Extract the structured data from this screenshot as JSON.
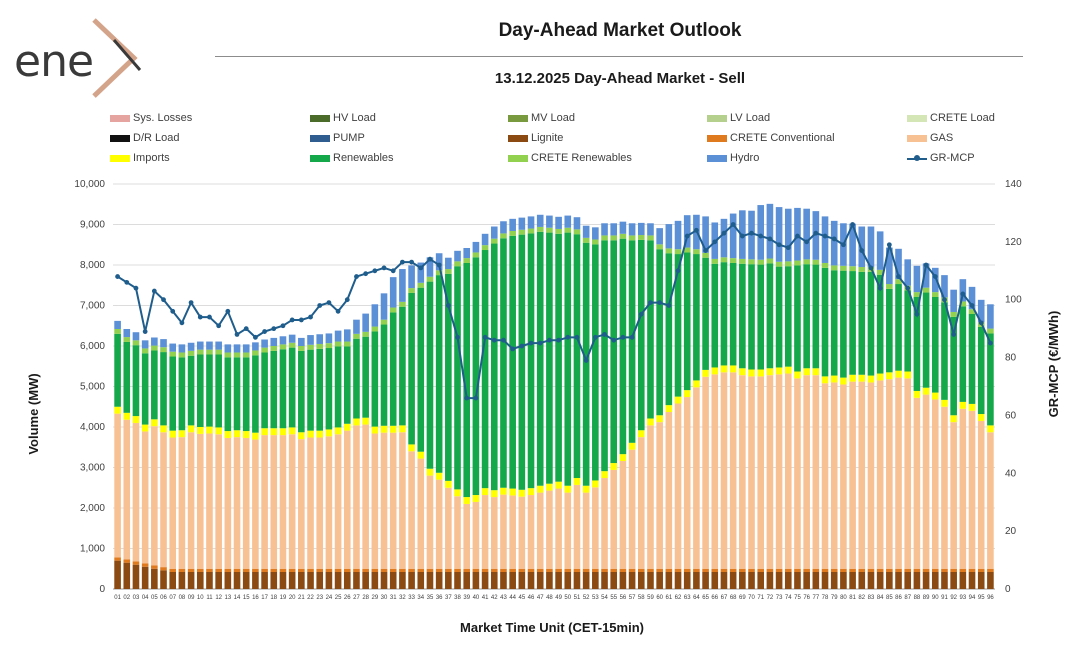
{
  "logo": {
    "text": "ene",
    "colors": {
      "text": "#3a3a3a",
      "mark": "#d4a48a"
    }
  },
  "header": {
    "title": "Day-Ahead Market Outlook",
    "subtitle": "13.12.2025  Day-Ahead Market - Sell"
  },
  "legend": [
    {
      "label": "Sys. Losses",
      "color": "#e6a4a0",
      "type": "box"
    },
    {
      "label": "HV Load",
      "color": "#4a6b2a",
      "type": "box"
    },
    {
      "label": "MV Load",
      "color": "#7a9a40",
      "type": "box"
    },
    {
      "label": "LV Load",
      "color": "#b5d08c",
      "type": "box"
    },
    {
      "label": "CRETE Load",
      "color": "#d4e6b5",
      "type": "box"
    },
    {
      "label": "D/R Load",
      "color": "#111111",
      "type": "box"
    },
    {
      "label": "PUMP",
      "color": "#2f5d8f",
      "type": "box"
    },
    {
      "label": "Lignite",
      "color": "#8a4a12",
      "type": "box"
    },
    {
      "label": "CRETE Conventional",
      "color": "#e07a1f",
      "type": "box"
    },
    {
      "label": "GAS",
      "color": "#f8c194",
      "type": "box"
    },
    {
      "label": "Imports",
      "color": "#ffff00",
      "type": "box"
    },
    {
      "label": "Renewables",
      "color": "#14a84a",
      "type": "box"
    },
    {
      "label": "CRETE Renewables",
      "color": "#92d050",
      "type": "box"
    },
    {
      "label": "Hydro",
      "color": "#5b8fd6",
      "type": "box"
    },
    {
      "label": "GR-MCP",
      "color": "#1f5d8c",
      "type": "line"
    }
  ],
  "chart_data": {
    "type": "bar",
    "subtype": "stacked bar with line on secondary axis",
    "title": "13.12.2025  Day-Ahead Market - Sell",
    "xlabel": "Market Time Unit (CET-15min)",
    "ylabel": "Volume (MW)",
    "y2label": "GR-MCP (€/MWh)",
    "ylim": [
      0,
      10000
    ],
    "y2lim": [
      0,
      140
    ],
    "yticks": [
      "0",
      "1,000",
      "2,000",
      "3,000",
      "4,000",
      "5,000",
      "6,000",
      "7,000",
      "8,000",
      "9,000",
      "10,000"
    ],
    "y2ticks": [
      "0",
      "20",
      "40",
      "60",
      "80",
      "100",
      "120",
      "140"
    ],
    "categories": [
      "01",
      "02",
      "03",
      "04",
      "05",
      "06",
      "07",
      "08",
      "09",
      "10",
      "11",
      "12",
      "13",
      "14",
      "15",
      "16",
      "17",
      "18",
      "19",
      "20",
      "21",
      "22",
      "23",
      "24",
      "25",
      "26",
      "27",
      "28",
      "29",
      "30",
      "31",
      "32",
      "33",
      "34",
      "35",
      "36",
      "37",
      "38",
      "39",
      "40",
      "41",
      "42",
      "43",
      "44",
      "45",
      "46",
      "47",
      "48",
      "49",
      "50",
      "51",
      "52",
      "53",
      "54",
      "55",
      "56",
      "57",
      "58",
      "59",
      "60",
      "61",
      "62",
      "63",
      "64",
      "65",
      "66",
      "67",
      "68",
      "69",
      "70",
      "71",
      "72",
      "73",
      "74",
      "75",
      "76",
      "77",
      "78",
      "79",
      "80",
      "81",
      "82",
      "83",
      "84",
      "85",
      "86",
      "87",
      "88",
      "89",
      "90",
      "91",
      "92",
      "93",
      "94",
      "95",
      "96"
    ],
    "series": [
      {
        "name": "Lignite",
        "color": "#8a4a12",
        "values": [
          700,
          650,
          600,
          550,
          500,
          460,
          420,
          420,
          420,
          420,
          420,
          420,
          420,
          420,
          420,
          420,
          420,
          420,
          420,
          420,
          420,
          420,
          420,
          420,
          420,
          420,
          420,
          420,
          420,
          420,
          420,
          420,
          420,
          420,
          420,
          420,
          420,
          420,
          420,
          420,
          420,
          420,
          420,
          420,
          420,
          420,
          420,
          420,
          420,
          420,
          420,
          420,
          420,
          420,
          420,
          420,
          420,
          420,
          420,
          420,
          420,
          420,
          420,
          420,
          420,
          420,
          420,
          420,
          420,
          420,
          420,
          420,
          420,
          420,
          420,
          420,
          420,
          420,
          420,
          420,
          420,
          420,
          420,
          420,
          420,
          420,
          420,
          420,
          420,
          420,
          420,
          420,
          420,
          420,
          420,
          420
        ]
      },
      {
        "name": "CRETE Conventional",
        "color": "#e07a1f",
        "values": [
          80,
          80,
          80,
          80,
          80,
          80,
          80,
          80,
          80,
          80,
          80,
          80,
          80,
          80,
          80,
          80,
          80,
          80,
          80,
          80,
          80,
          80,
          80,
          80,
          80,
          80,
          80,
          80,
          80,
          80,
          80,
          80,
          80,
          80,
          80,
          80,
          80,
          80,
          80,
          80,
          80,
          80,
          80,
          80,
          80,
          80,
          80,
          80,
          80,
          80,
          80,
          80,
          80,
          80,
          80,
          80,
          80,
          80,
          80,
          80,
          80,
          80,
          80,
          80,
          80,
          80,
          80,
          80,
          80,
          80,
          80,
          80,
          80,
          80,
          80,
          80,
          80,
          80,
          80,
          80,
          80,
          80,
          80,
          80,
          80,
          80,
          80,
          80,
          80,
          80,
          80,
          80,
          80,
          80,
          80,
          80
        ]
      },
      {
        "name": "GAS",
        "color": "#f8c194",
        "values": [
          3550,
          3450,
          3420,
          3260,
          3440,
          3330,
          3240,
          3250,
          3370,
          3330,
          3340,
          3320,
          3230,
          3250,
          3230,
          3190,
          3300,
          3300,
          3300,
          3320,
          3200,
          3240,
          3240,
          3270,
          3320,
          3410,
          3540,
          3560,
          3340,
          3360,
          3360,
          3370,
          2900,
          2720,
          2300,
          2200,
          2000,
          1790,
          1600,
          1650,
          1820,
          1770,
          1830,
          1810,
          1780,
          1820,
          1880,
          1930,
          1980,
          1880,
          2070,
          1880,
          2010,
          2240,
          2440,
          2660,
          2940,
          3250,
          3540,
          3620,
          3870,
          4080,
          4240,
          4480,
          4740,
          4800,
          4850,
          4850,
          4780,
          4750,
          4750,
          4780,
          4800,
          4820,
          4700,
          4780,
          4780,
          4580,
          4600,
          4550,
          4620,
          4620,
          4600,
          4650,
          4680,
          4720,
          4700,
          4220,
          4300,
          4180,
          4000,
          3620,
          3950,
          3900,
          3650,
          3370
        ]
      },
      {
        "name": "Imports",
        "color": "#ffff00",
        "values": [
          170,
          170,
          170,
          170,
          170,
          170,
          170,
          170,
          170,
          170,
          170,
          170,
          170,
          170,
          170,
          170,
          170,
          170,
          170,
          170,
          170,
          170,
          170,
          170,
          170,
          170,
          170,
          170,
          170,
          170,
          170,
          170,
          170,
          170,
          170,
          170,
          170,
          170,
          170,
          170,
          170,
          170,
          170,
          170,
          170,
          170,
          170,
          170,
          170,
          170,
          170,
          170,
          170,
          170,
          170,
          170,
          170,
          170,
          170,
          170,
          170,
          170,
          170,
          170,
          170,
          170,
          170,
          170,
          170,
          170,
          170,
          170,
          170,
          170,
          170,
          170,
          170,
          170,
          170,
          170,
          170,
          170,
          170,
          170,
          170,
          170,
          170,
          170,
          170,
          170,
          170,
          170,
          170,
          170,
          170,
          170
        ]
      },
      {
        "name": "Renewables",
        "color": "#14a84a",
        "values": [
          1800,
          1750,
          1750,
          1760,
          1700,
          1810,
          1830,
          1800,
          1720,
          1790,
          1780,
          1800,
          1820,
          1800,
          1820,
          1910,
          1870,
          1910,
          1950,
          1970,
          2010,
          2000,
          2020,
          2010,
          2000,
          1910,
          1970,
          2000,
          2350,
          2500,
          2800,
          2930,
          3740,
          4050,
          4620,
          4880,
          5110,
          5510,
          5780,
          5870,
          5880,
          6090,
          6160,
          6240,
          6300,
          6290,
          6270,
          6200,
          6120,
          6250,
          6020,
          6000,
          5830,
          5700,
          5500,
          5320,
          5000,
          4700,
          4400,
          4100,
          3750,
          3520,
          3400,
          3120,
          2770,
          2560,
          2550,
          2530,
          2580,
          2600,
          2590,
          2590,
          2490,
          2480,
          2620,
          2570,
          2560,
          2680,
          2600,
          2640,
          2560,
          2540,
          2560,
          2440,
          2060,
          2140,
          2000,
          2320,
          2350,
          2360,
          2410,
          2430,
          2360,
          2220,
          2150,
          2270
        ]
      },
      {
        "name": "CRETE Renewables",
        "color": "#92d050",
        "values": [
          120,
          120,
          120,
          120,
          120,
          120,
          120,
          120,
          120,
          120,
          120,
          120,
          120,
          120,
          120,
          120,
          120,
          120,
          120,
          120,
          120,
          120,
          120,
          120,
          120,
          120,
          120,
          120,
          120,
          120,
          120,
          120,
          120,
          120,
          120,
          120,
          120,
          120,
          120,
          120,
          120,
          120,
          120,
          120,
          120,
          120,
          120,
          120,
          120,
          120,
          120,
          120,
          120,
          120,
          120,
          120,
          120,
          120,
          120,
          120,
          120,
          120,
          120,
          120,
          120,
          120,
          120,
          120,
          120,
          120,
          120,
          120,
          120,
          120,
          120,
          120,
          120,
          120,
          120,
          120,
          120,
          120,
          120,
          120,
          120,
          120,
          120,
          120,
          120,
          120,
          120,
          120,
          120,
          120,
          120,
          120
        ]
      },
      {
        "name": "Hydro",
        "color": "#5b8fd6",
        "values": [
          200,
          200,
          200,
          200,
          200,
          200,
          200,
          200,
          200,
          200,
          200,
          200,
          200,
          200,
          200,
          200,
          200,
          200,
          200,
          200,
          200,
          240,
          240,
          240,
          270,
          300,
          350,
          450,
          550,
          650,
          750,
          810,
          560,
          500,
          480,
          420,
          280,
          260,
          250,
          260,
          280,
          300,
          300,
          300,
          300,
          300,
          300,
          300,
          300,
          300,
          300,
          300,
          300,
          300,
          300,
          300,
          300,
          300,
          300,
          400,
          600,
          700,
          800,
          850,
          900,
          900,
          950,
          1100,
          1200,
          1200,
          1350,
          1350,
          1350,
          1300,
          1300,
          1250,
          1200,
          1150,
          1100,
          1050,
          1050,
          1000,
          1000,
          950,
          900,
          750,
          650,
          650,
          600,
          600,
          550,
          550,
          550,
          550,
          550,
          600
        ]
      }
    ],
    "line_series": {
      "name": "GR-MCP",
      "axis": "secondary",
      "color": "#1f5d8c",
      "values": [
        108,
        106,
        104,
        89,
        103,
        100,
        96,
        92,
        99,
        94,
        94,
        91,
        96,
        88,
        90,
        87,
        89,
        90,
        91,
        93,
        93,
        94,
        98,
        99,
        96,
        100,
        108,
        109,
        110,
        111,
        110,
        113,
        113,
        111,
        114,
        112,
        98,
        87,
        66,
        66,
        87,
        86,
        86,
        83,
        84,
        85,
        85,
        86,
        86,
        87,
        87,
        79,
        87,
        88,
        86,
        87,
        87,
        95,
        99,
        99,
        98,
        110,
        122,
        124,
        117,
        120,
        123,
        126,
        122,
        123,
        122,
        121,
        119,
        118,
        122,
        120,
        123,
        122,
        121,
        119,
        126,
        117,
        111,
        104,
        119,
        108,
        104,
        95,
        112,
        108,
        100,
        88,
        102,
        98,
        92,
        85
      ]
    }
  }
}
